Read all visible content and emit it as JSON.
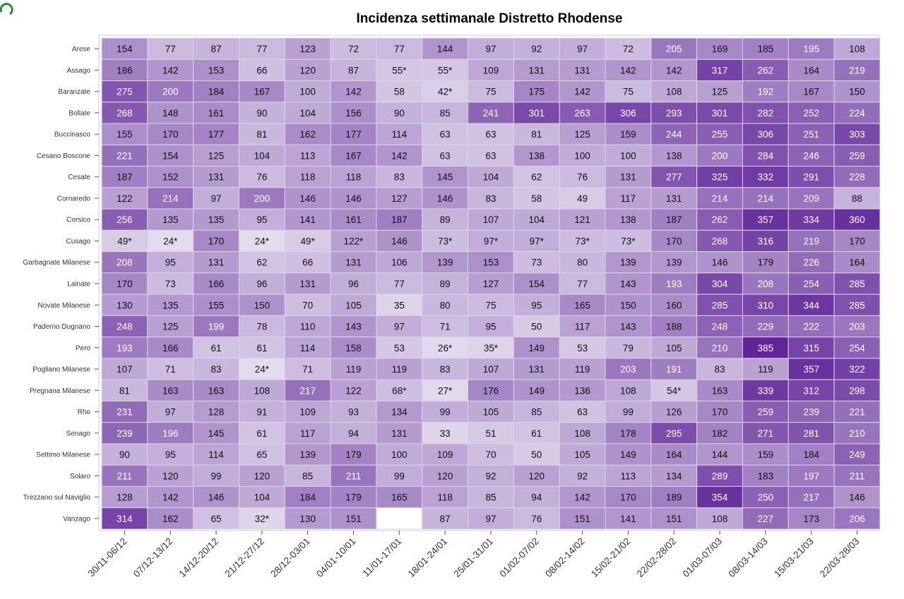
{
  "colors": {
    "low": "#f3f2f8",
    "high": "#5b1f95",
    "logo": "#2e8b3a",
    "grid": "#d8d4e6"
  },
  "chart_data": {
    "type": "heatmap",
    "title": "Incidenza settimanale Distretto Rhodense",
    "rows": [
      "Arese",
      "Assago",
      "Baranzate",
      "Bollate",
      "Buccinasco",
      "Cesano Boscone",
      "Cesate",
      "Cornaredo",
      "Corsico",
      "Cusago",
      "Garbagnate Milanese",
      "Lainate",
      "Novate Milanese",
      "Paderno Dugnano",
      "Pero",
      "Pogliano Milanese",
      "Pregnana Milanese",
      "Rho",
      "Senago",
      "Settimo Milanese",
      "Solaro",
      "Trezzano sul Naviglio",
      "Vanzago"
    ],
    "columns": [
      "30/11-06/12",
      "07/12-13/12",
      "14/12-20/12",
      "21/12-27/12",
      "28/12-03/01",
      "04/01-10/01",
      "11/01-17/01",
      "18/01-24/01",
      "25/01-31/01",
      "01/02-07/02",
      "08/02-14/02",
      "15/02-21/02",
      "22/02-28/02",
      "01/03-07/03",
      "08/03-14/03",
      "15/03-21/03",
      "22/03-28/03"
    ],
    "values": [
      [
        "154",
        "77",
        "87",
        "77",
        "123",
        "72",
        "77",
        "144",
        "97",
        "92",
        "97",
        "72",
        "205",
        "169",
        "185",
        "195",
        "108"
      ],
      [
        "186",
        "142",
        "153",
        "66",
        "120",
        "87",
        "55*",
        "55*",
        "109",
        "131",
        "131",
        "142",
        "142",
        "317",
        "262",
        "164",
        "219"
      ],
      [
        "275",
        "200",
        "184",
        "167",
        "100",
        "142",
        "58",
        "42*",
        "75",
        "175",
        "142",
        "75",
        "108",
        "125",
        "192",
        "167",
        "150"
      ],
      [
        "268",
        "148",
        "161",
        "90",
        "104",
        "156",
        "90",
        "85",
        "241",
        "301",
        "263",
        "306",
        "293",
        "301",
        "282",
        "252",
        "224"
      ],
      [
        "155",
        "170",
        "177",
        "81",
        "162",
        "177",
        "114",
        "63",
        "63",
        "81",
        "125",
        "159",
        "244",
        "255",
        "306",
        "251",
        "303"
      ],
      [
        "221",
        "154",
        "125",
        "104",
        "113",
        "167",
        "142",
        "63",
        "63",
        "138",
        "100",
        "100",
        "138",
        "200",
        "284",
        "246",
        "259"
      ],
      [
        "187",
        "152",
        "131",
        "76",
        "118",
        "118",
        "83",
        "145",
        "104",
        "62",
        "76",
        "131",
        "277",
        "325",
        "332",
        "291",
        "228"
      ],
      [
        "122",
        "214",
        "97",
        "200",
        "146",
        "146",
        "127",
        "146",
        "83",
        "58",
        "49",
        "117",
        "131",
        "214",
        "214",
        "209",
        "88"
      ],
      [
        "256",
        "135",
        "135",
        "95",
        "141",
        "161",
        "187",
        "89",
        "107",
        "104",
        "121",
        "138",
        "187",
        "262",
        "357",
        "334",
        "360"
      ],
      [
        "49*",
        "24*",
        "170",
        "24*",
        "49*",
        "122*",
        "146",
        "73*",
        "97*",
        "97*",
        "73*",
        "73*",
        "170",
        "268",
        "316",
        "219",
        "170"
      ],
      [
        "208",
        "95",
        "131",
        "62",
        "66",
        "131",
        "106",
        "139",
        "153",
        "73",
        "80",
        "139",
        "139",
        "146",
        "179",
        "226",
        "164"
      ],
      [
        "170",
        "73",
        "166",
        "96",
        "131",
        "96",
        "77",
        "89",
        "127",
        "154",
        "77",
        "143",
        "193",
        "304",
        "208",
        "254",
        "285"
      ],
      [
        "130",
        "135",
        "155",
        "150",
        "70",
        "105",
        "35",
        "80",
        "75",
        "95",
        "165",
        "150",
        "160",
        "285",
        "310",
        "344",
        "285"
      ],
      [
        "248",
        "125",
        "199",
        "78",
        "110",
        "143",
        "97",
        "71",
        "95",
        "50",
        "117",
        "143",
        "188",
        "248",
        "229",
        "222",
        "203"
      ],
      [
        "193",
        "166",
        "61",
        "61",
        "114",
        "158",
        "53",
        "26*",
        "35*",
        "149",
        "53",
        "79",
        "105",
        "210",
        "385",
        "315",
        "254"
      ],
      [
        "107",
        "71",
        "83",
        "24*",
        "71",
        "119",
        "119",
        "83",
        "107",
        "131",
        "119",
        "203",
        "191",
        "83",
        "119",
        "357",
        "322"
      ],
      [
        "81",
        "163",
        "163",
        "108",
        "217",
        "122",
        "68*",
        "27*",
        "176",
        "149",
        "136",
        "108",
        "54*",
        "163",
        "339",
        "312",
        "298"
      ],
      [
        "231",
        "97",
        "128",
        "91",
        "109",
        "93",
        "134",
        "99",
        "105",
        "85",
        "63",
        "99",
        "126",
        "170",
        "259",
        "239",
        "221"
      ],
      [
        "239",
        "196",
        "145",
        "61",
        "117",
        "94",
        "131",
        "33",
        "51",
        "61",
        "108",
        "178",
        "295",
        "182",
        "271",
        "281",
        "210"
      ],
      [
        "90",
        "95",
        "114",
        "65",
        "139",
        "179",
        "100",
        "109",
        "70",
        "50",
        "105",
        "149",
        "164",
        "144",
        "159",
        "184",
        "249"
      ],
      [
        "211",
        "120",
        "99",
        "120",
        "85",
        "211",
        "99",
        "120",
        "92",
        "120",
        "92",
        "113",
        "134",
        "289",
        "183",
        "197",
        "211"
      ],
      [
        "128",
        "142",
        "146",
        "104",
        "184",
        "179",
        "165",
        "118",
        "85",
        "94",
        "142",
        "170",
        "189",
        "354",
        "250",
        "217",
        "146"
      ],
      [
        "314",
        "162",
        "65",
        "32*",
        "130",
        "151",
        "",
        "87",
        "97",
        "76",
        "151",
        "141",
        "151",
        "108",
        "227",
        "173",
        "206"
      ]
    ],
    "color_scale": [
      0,
      400
    ],
    "legend": "none",
    "grid": true
  }
}
